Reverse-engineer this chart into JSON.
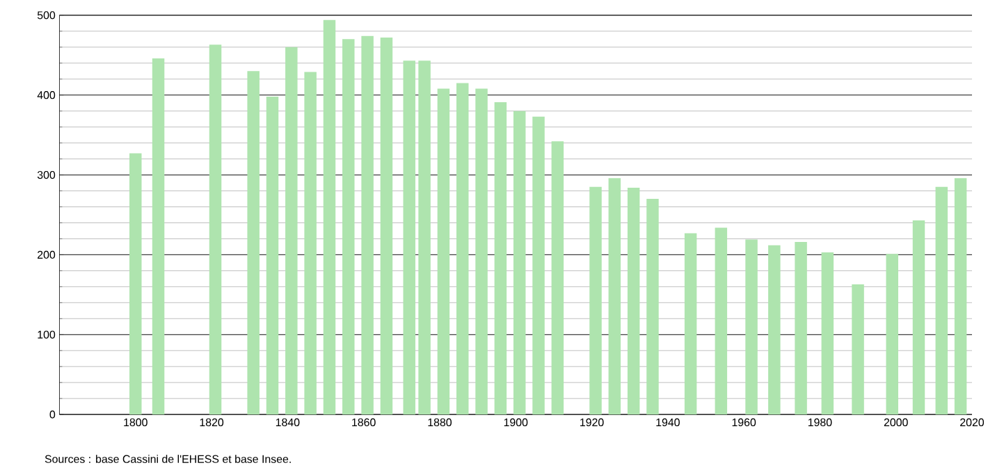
{
  "chart_data": {
    "type": "bar",
    "x": [
      1800,
      1806,
      1821,
      1831,
      1836,
      1841,
      1846,
      1851,
      1856,
      1861,
      1866,
      1872,
      1876,
      1881,
      1886,
      1891,
      1896,
      1901,
      1906,
      1911,
      1921,
      1926,
      1931,
      1936,
      1946,
      1954,
      1962,
      1968,
      1975,
      1982,
      1990,
      1999,
      2006,
      2012,
      2017
    ],
    "values": [
      327,
      446,
      463,
      430,
      398,
      460,
      429,
      494,
      470,
      474,
      472,
      443,
      443,
      408,
      415,
      408,
      391,
      380,
      373,
      342,
      285,
      296,
      284,
      270,
      227,
      234,
      219,
      212,
      216,
      203,
      163,
      201,
      243,
      285,
      296
    ],
    "color": "#aee4ae",
    "xlim": [
      1780,
      2020
    ],
    "xticks": [
      1800,
      1820,
      1840,
      1860,
      1880,
      1900,
      1920,
      1940,
      1960,
      1980,
      2000,
      2020
    ],
    "ylim": [
      0,
      500
    ],
    "yticks": [
      0,
      100,
      200,
      300,
      400,
      500
    ],
    "grid": "y",
    "annotations": [
      "Sources : base Cassini de l'EHESS et base Insee."
    ]
  }
}
